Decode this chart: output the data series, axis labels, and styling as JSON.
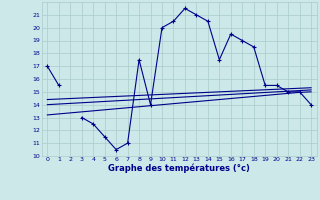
{
  "title": "Graphe des températures (°c)",
  "bg_color": "#cce8e8",
  "grid_color": "#aacccc",
  "line_color": "#00008b",
  "x_hours": [
    0,
    1,
    2,
    3,
    4,
    5,
    6,
    7,
    8,
    9,
    10,
    11,
    12,
    13,
    14,
    15,
    16,
    17,
    18,
    19,
    20,
    21,
    22,
    23
  ],
  "temp_main": [
    17.0,
    15.5,
    null,
    13.0,
    12.5,
    11.5,
    10.5,
    11.0,
    17.5,
    14.0,
    20.0,
    20.5,
    21.5,
    21.0,
    20.5,
    17.5,
    19.5,
    19.0,
    18.5,
    15.5,
    15.5,
    15.0,
    15.0,
    14.0
  ],
  "temp_line1": [
    14.0,
    14.05,
    14.1,
    14.15,
    14.2,
    14.25,
    14.3,
    14.35,
    14.4,
    14.45,
    14.5,
    14.55,
    14.6,
    14.65,
    14.7,
    14.75,
    14.8,
    14.85,
    14.9,
    14.95,
    15.0,
    15.05,
    15.1,
    15.15
  ],
  "temp_line2": [
    13.2,
    13.28,
    13.36,
    13.44,
    13.52,
    13.6,
    13.68,
    13.76,
    13.84,
    13.92,
    14.0,
    14.08,
    14.16,
    14.24,
    14.32,
    14.4,
    14.48,
    14.56,
    14.64,
    14.72,
    14.8,
    14.88,
    14.96,
    15.0
  ],
  "temp_line3": [
    14.4,
    14.44,
    14.48,
    14.52,
    14.56,
    14.6,
    14.64,
    14.68,
    14.72,
    14.76,
    14.8,
    14.84,
    14.88,
    14.92,
    14.96,
    15.0,
    15.04,
    15.08,
    15.12,
    15.16,
    15.2,
    15.24,
    15.28,
    15.32
  ],
  "ylim": [
    10,
    22
  ],
  "xlim": [
    -0.5,
    23.5
  ],
  "yticks": [
    10,
    11,
    12,
    13,
    14,
    15,
    16,
    17,
    18,
    19,
    20,
    21
  ],
  "xticks": [
    0,
    1,
    2,
    3,
    4,
    5,
    6,
    7,
    8,
    9,
    10,
    11,
    12,
    13,
    14,
    15,
    16,
    17,
    18,
    19,
    20,
    21,
    22,
    23
  ]
}
